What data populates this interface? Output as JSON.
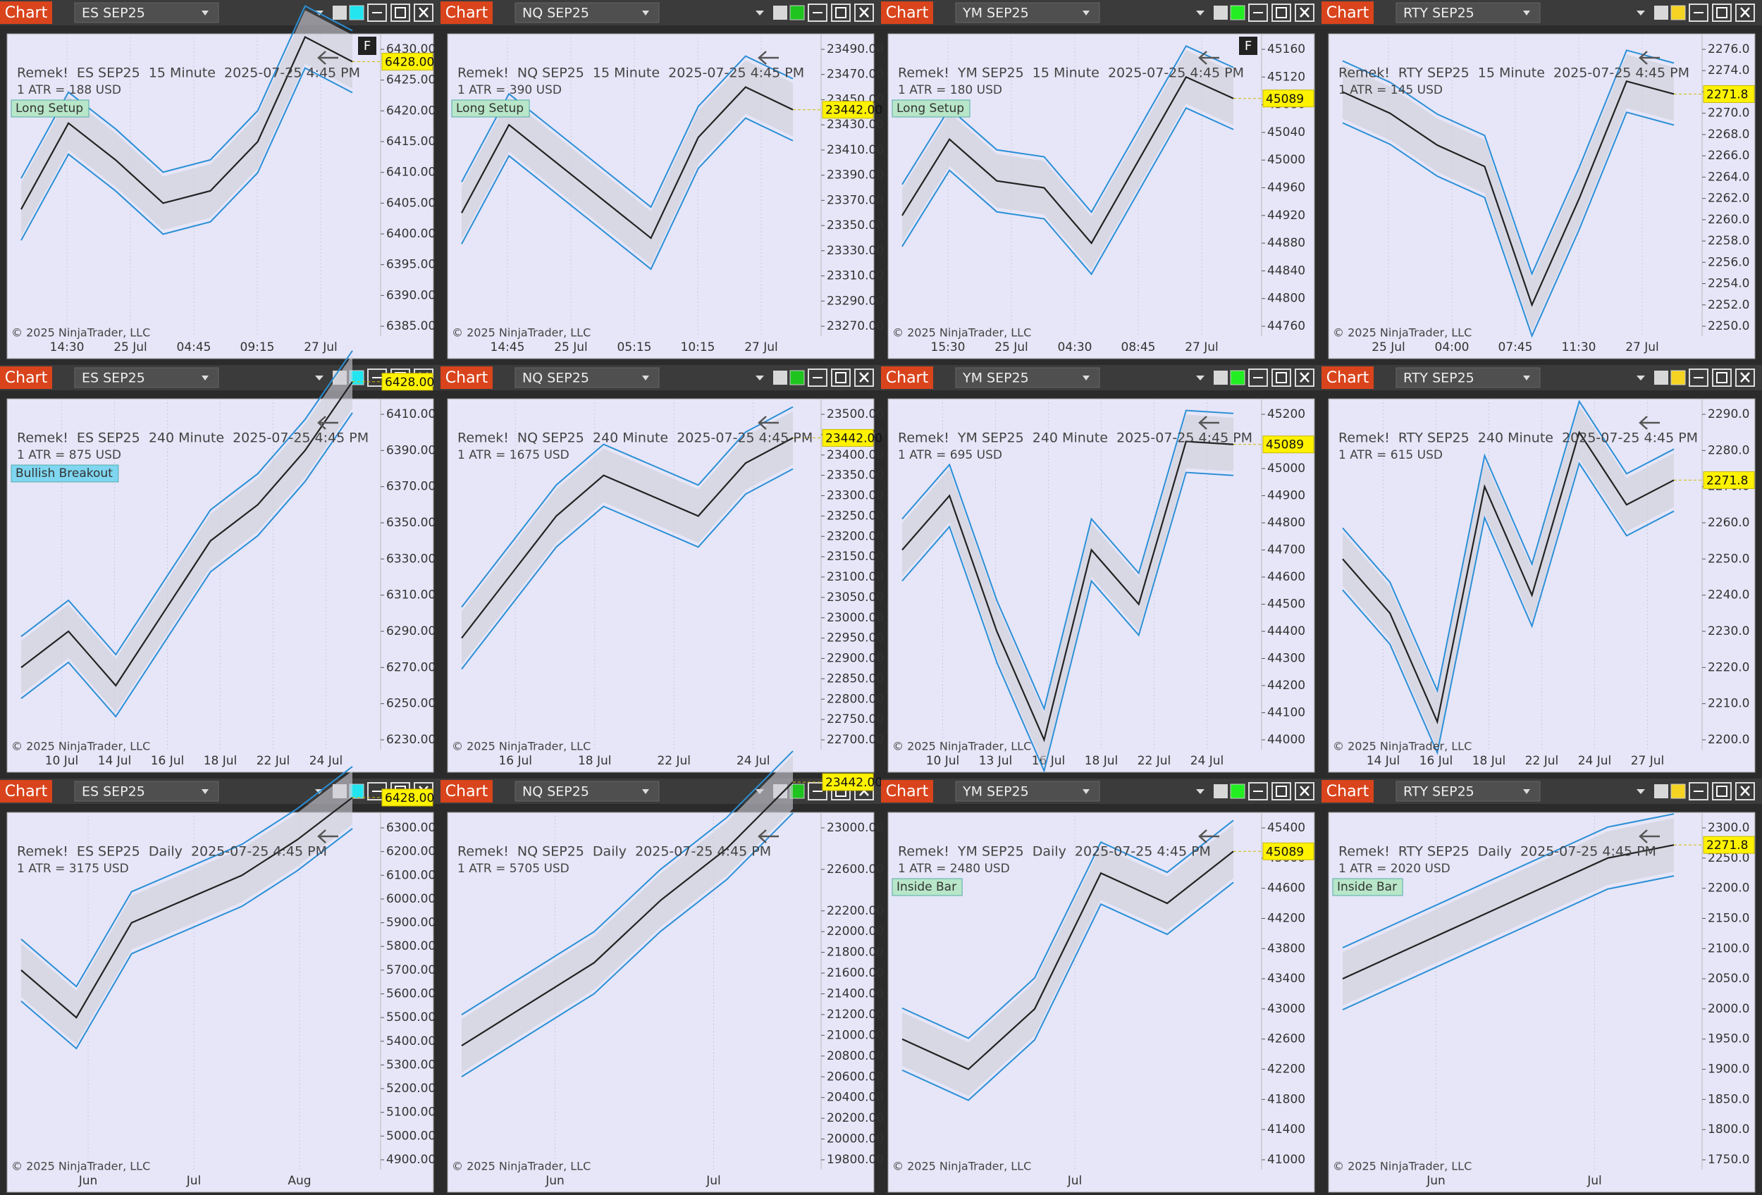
{
  "panels": [
    {
      "tab": "Chart",
      "instrument": "ES SEP25",
      "link_color": "#22e5f0",
      "flag": "F",
      "title": "Remek!  ES SEP25  15 Minute  2025-07-25 4:45 PM",
      "atr": "1 ATR = 188 USD",
      "badge": "Long Setup",
      "price": "6428.00",
      "yticks": [
        "6430.00",
        "6425.00",
        "6420.00",
        "6415.00",
        "6410.00",
        "6405.00",
        "6400.00",
        "6395.00",
        "6390.00",
        "6385.00"
      ],
      "xticks": [
        "14:30",
        "25 Jul",
        "04:45",
        "09:15",
        "27 Jul"
      ],
      "closes": [
        6404,
        6418,
        6412,
        6405,
        6407,
        6415,
        6432,
        6428
      ],
      "copyright": "© 2025 NinjaTrader, LLC"
    },
    {
      "tab": "Chart",
      "instrument": "NQ SEP25",
      "link_color": "#1fc41f",
      "title": "Remek!  NQ SEP25  15 Minute  2025-07-25 4:45 PM",
      "atr": "1 ATR = 390 USD",
      "badge": "Long Setup",
      "price": "23442.00",
      "yticks": [
        "23490.00",
        "23470.00",
        "23450.00",
        "23430.00",
        "23410.00",
        "23390.00",
        "23370.00",
        "23350.00",
        "23330.00",
        "23310.00",
        "23290.00",
        "23270.00"
      ],
      "xticks": [
        "14:45",
        "25 Jul",
        "05:15",
        "10:15",
        "27 Jul"
      ],
      "closes": [
        23360,
        23430,
        23400,
        23370,
        23340,
        23420,
        23460,
        23442
      ],
      "copyright": "© 2025 NinjaTrader, LLC"
    },
    {
      "tab": "Chart",
      "instrument": "YM SEP25",
      "link_color": "#22ee22",
      "flag": "F",
      "title": "Remek!  YM SEP25  15 Minute  2025-07-25 4:45 PM",
      "atr": "1 ATR = 180 USD",
      "badge": "Long Setup",
      "price": "45089",
      "yticks": [
        "45160",
        "45120",
        "45080",
        "45040",
        "45000",
        "44960",
        "44920",
        "44880",
        "44840",
        "44800",
        "44760"
      ],
      "xticks": [
        "15:30",
        "25 Jul",
        "04:30",
        "08:45",
        "27 Jul"
      ],
      "closes": [
        44920,
        45030,
        44970,
        44960,
        44880,
        45000,
        45120,
        45089
      ],
      "copyright": "© 2025 NinjaTrader, LLC"
    },
    {
      "tab": "Chart",
      "instrument": "RTY SEP25",
      "link_color": "#f5d323",
      "title": "Remek!  RTY SEP25  15 Minute  2025-07-25 4:45 PM",
      "atr": "1 ATR = 145 USD",
      "price": "2271.8",
      "yticks": [
        "2276.0",
        "2274.0",
        "2272.0",
        "2270.0",
        "2268.0",
        "2266.0",
        "2264.0",
        "2262.0",
        "2260.0",
        "2258.0",
        "2256.0",
        "2254.0",
        "2252.0",
        "2250.0"
      ],
      "xticks": [
        "25 Jul",
        "04:00",
        "07:45",
        "11:30",
        "27 Jul"
      ],
      "closes": [
        2272,
        2270,
        2267,
        2265,
        2252,
        2262,
        2273,
        2271.8
      ],
      "copyright": "© 2025 NinjaTrader, LLC"
    },
    {
      "tab": "Chart",
      "instrument": "ES SEP25",
      "link_color": "#22e5f0",
      "title": "Remek!  ES SEP25  240 Minute  2025-07-25 4:45 PM",
      "atr": "1 ATR = 875 USD",
      "badge": "Bullish Breakout",
      "price": "6428.00",
      "yticks": [
        "6410.00",
        "6390.00",
        "6370.00",
        "6350.00",
        "6330.00",
        "6310.00",
        "6290.00",
        "6270.00",
        "6250.00",
        "6230.00"
      ],
      "xticks": [
        "10 Jul",
        "14 Jul",
        "16 Jul",
        "18 Jul",
        "22 Jul",
        "24 Jul"
      ],
      "closes": [
        6270,
        6290,
        6260,
        6300,
        6340,
        6360,
        6390,
        6428
      ],
      "copyright": "© 2025 NinjaTrader, LLC"
    },
    {
      "tab": "Chart",
      "instrument": "NQ SEP25",
      "link_color": "#1fc41f",
      "title": "Remek!  NQ SEP25  240 Minute  2025-07-25 4:45 PM",
      "atr": "1 ATR = 1675 USD",
      "price": "23442.00",
      "yticks": [
        "23500.00",
        "23450.00",
        "23400.00",
        "23350.00",
        "23300.00",
        "23250.00",
        "23200.00",
        "23150.00",
        "23100.00",
        "23050.00",
        "23000.00",
        "22950.00",
        "22900.00",
        "22850.00",
        "22800.00",
        "22750.00",
        "22700.00"
      ],
      "xticks": [
        "16 Jul",
        "18 Jul",
        "22 Jul",
        "24 Jul"
      ],
      "closes": [
        22950,
        23100,
        23250,
        23350,
        23300,
        23250,
        23380,
        23442
      ],
      "copyright": "© 2025 NinjaTrader, LLC"
    },
    {
      "tab": "Chart",
      "instrument": "YM SEP25",
      "link_color": "#22ee22",
      "title": "Remek!  YM SEP25  240 Minute  2025-07-25 4:45 PM",
      "atr": "1 ATR = 695 USD",
      "price": "45089",
      "yticks": [
        "45200",
        "45000",
        "44900",
        "44800",
        "44700",
        "44600",
        "44500",
        "44400",
        "44300",
        "44200",
        "44100",
        "44000"
      ],
      "xticks": [
        "10 Jul",
        "13 Jul",
        "16 Jul",
        "18 Jul",
        "22 Jul",
        "24 Jul"
      ],
      "closes": [
        44700,
        44900,
        44400,
        44000,
        44700,
        44500,
        45100,
        45089
      ],
      "copyright": "© 2025 NinjaTrader, LLC"
    },
    {
      "tab": "Chart",
      "instrument": "RTY SEP25",
      "link_color": "#f5d323",
      "title": "Remek!  RTY SEP25  240 Minute  2025-07-25 4:45 PM",
      "atr": "1 ATR = 615 USD",
      "price": "2271.8",
      "yticks": [
        "2290.0",
        "2280.0",
        "2270.0",
        "2260.0",
        "2250.0",
        "2240.0",
        "2230.0",
        "2220.0",
        "2210.0",
        "2200.0"
      ],
      "xticks": [
        "14 Jul",
        "16 Jul",
        "18 Jul",
        "22 Jul",
        "24 Jul",
        "27 Jul"
      ],
      "closes": [
        2250,
        2235,
        2205,
        2270,
        2240,
        2285,
        2265,
        2271.8
      ],
      "copyright": "© 2025 NinjaTrader, LLC"
    },
    {
      "tab": "Chart",
      "instrument": "ES SEP25",
      "link_color": "#22e5f0",
      "title": "Remek!  ES SEP25  Daily  2025-07-25 4:45 PM",
      "atr": "1 ATR = 3175 USD",
      "price": "6428.00",
      "yticks": [
        "6300.00",
        "6200.00",
        "6100.00",
        "6000.00",
        "5900.00",
        "5800.00",
        "5700.00",
        "5600.00",
        "5500.00",
        "5400.00",
        "5300.00",
        "5200.00",
        "5100.00",
        "5000.00",
        "4900.00"
      ],
      "xticks": [
        "Jun",
        "Jul",
        "Aug"
      ],
      "closes": [
        5700,
        5500,
        5900,
        6000,
        6100,
        6250,
        6428
      ],
      "copyright": "© 2025 NinjaTrader, LLC"
    },
    {
      "tab": "Chart",
      "instrument": "NQ SEP25",
      "link_color": "#1fc41f",
      "title": "Remek!  NQ SEP25  Daily  2025-07-25 4:45 PM",
      "atr": "1 ATR = 5705 USD",
      "price": "23442.00",
      "yticks": [
        "23000.00",
        "22600.00",
        "22200.00",
        "22000.00",
        "21800.00",
        "21600.00",
        "21400.00",
        "21200.00",
        "21000.00",
        "20800.00",
        "20600.00",
        "20400.00",
        "20200.00",
        "20000.00",
        "19800.00"
      ],
      "xticks": [
        "Jun",
        "Jul"
      ],
      "closes": [
        20900,
        21300,
        21700,
        22300,
        22800,
        23442
      ],
      "copyright": "© 2025 NinjaTrader, LLC"
    },
    {
      "tab": "Chart",
      "instrument": "YM SEP25",
      "link_color": "#22ee22",
      "title": "Remek!  YM SEP25  Daily  2025-07-25 4:45 PM",
      "atr": "1 ATR = 2480 USD",
      "badge": "Inside Bar",
      "price": "45089",
      "yticks": [
        "45400",
        "45000",
        "44600",
        "44200",
        "43800",
        "43400",
        "43000",
        "42600",
        "42200",
        "41800",
        "41400",
        "41000"
      ],
      "xticks": [
        "Jul"
      ],
      "closes": [
        42600,
        42200,
        43000,
        44800,
        44400,
        45089
      ],
      "copyright": "© 2025 NinjaTrader, LLC"
    },
    {
      "tab": "Chart",
      "instrument": "RTY SEP25",
      "link_color": "#f5d323",
      "title": "Remek!  RTY SEP25  Daily  2025-07-25 4:45 PM",
      "atr": "1 ATR = 2020 USD",
      "badge": "Inside Bar",
      "price": "2271.8",
      "yticks": [
        "2300.0",
        "2250.0",
        "2200.0",
        "2150.0",
        "2100.0",
        "2050.0",
        "2000.0",
        "1950.0",
        "1900.0",
        "1850.0",
        "1800.0",
        "1750.0"
      ],
      "xticks": [
        "Jun",
        "Jul"
      ],
      "closes": [
        2050,
        2100,
        2150,
        2200,
        2250,
        2271.8
      ],
      "copyright": "© 2025 NinjaTrader, LLC"
    }
  ]
}
